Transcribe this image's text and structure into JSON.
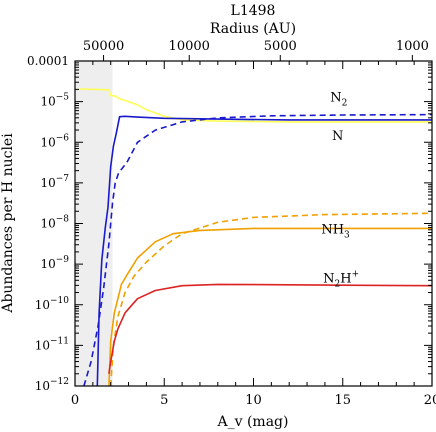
{
  "chart_data": {
    "type": "line",
    "title": "L1498",
    "xlabel": "A_v (mag)",
    "ylabel": "Abundances per H nuclei",
    "top_axis_label": "Radius (AU)",
    "xlim": [
      0,
      20
    ],
    "ylim_log10": [
      -12,
      -4
    ],
    "y_scale": "log",
    "grid": false,
    "x_ticks": [
      0,
      5,
      10,
      15,
      20
    ],
    "x_tick_labels": [
      "0",
      "5",
      "10",
      "15",
      "20"
    ],
    "y_tick_labels": [
      "10^-12",
      "10^-11",
      "10^-10",
      "10^-9",
      "10^-8",
      "10^-7",
      "10^-6",
      "10^-5",
      "0.0001"
    ],
    "top_ticks": [
      {
        "av": 1.6,
        "label": "50000"
      },
      {
        "av": 6.4,
        "label": "10000"
      },
      {
        "av": 11.5,
        "label": "5000"
      },
      {
        "av": 18.9,
        "label": "1000"
      }
    ],
    "shaded_region": {
      "x": [
        0,
        2.1
      ],
      "color": "#eeeeee"
    },
    "series": [
      {
        "name": "N2",
        "label_main": "N",
        "label_sub": "2",
        "label_sup": "",
        "label_pos": {
          "x": 14.3,
          "y": -5.0
        },
        "color": "#ffff55",
        "dash": false,
        "points": [
          [
            0.2,
            -4.69
          ],
          [
            1.2,
            -4.7
          ],
          [
            1.9,
            -4.71
          ],
          [
            2.0,
            -4.85
          ],
          [
            2.3,
            -4.87
          ],
          [
            2.5,
            -4.93
          ],
          [
            3.0,
            -5.0
          ],
          [
            3.5,
            -5.08
          ],
          [
            4.0,
            -5.2
          ],
          [
            5.0,
            -5.36
          ],
          [
            6.0,
            -5.45
          ],
          [
            8.0,
            -5.48
          ],
          [
            12.0,
            -5.5
          ],
          [
            20.0,
            -5.5
          ]
        ]
      },
      {
        "name": "N",
        "label_main": "N",
        "label_sub": "",
        "label_sup": "",
        "label_pos": {
          "x": 14.4,
          "y": -5.95
        },
        "color": "#1a1acc",
        "dash": false,
        "points": [
          [
            1.25,
            -12.0
          ],
          [
            1.35,
            -10.2
          ],
          [
            1.5,
            -8.9
          ],
          [
            1.7,
            -8.1
          ],
          [
            1.85,
            -7.6
          ],
          [
            2.0,
            -6.6
          ],
          [
            2.15,
            -6.1
          ],
          [
            2.3,
            -5.8
          ],
          [
            2.5,
            -5.37
          ],
          [
            2.8,
            -5.36
          ],
          [
            3.5,
            -5.38
          ],
          [
            5.0,
            -5.41
          ],
          [
            8.0,
            -5.43
          ],
          [
            12.0,
            -5.45
          ],
          [
            20.0,
            -5.45
          ]
        ]
      },
      {
        "name": "N dashed",
        "label_main": "",
        "label_sub": "",
        "label_sup": "",
        "color": "#1a1acc",
        "dash": true,
        "points": [
          [
            0.5,
            -12.0
          ],
          [
            0.9,
            -11.4
          ],
          [
            1.3,
            -10.5
          ],
          [
            1.6,
            -9.6
          ],
          [
            1.9,
            -8.5
          ],
          [
            2.1,
            -7.5
          ],
          [
            2.25,
            -7.0
          ],
          [
            2.45,
            -6.75
          ],
          [
            2.9,
            -6.5
          ],
          [
            3.5,
            -6.0
          ],
          [
            4.5,
            -5.7
          ],
          [
            6.0,
            -5.5
          ],
          [
            8.0,
            -5.4
          ],
          [
            11.0,
            -5.35
          ],
          [
            15.0,
            -5.33
          ],
          [
            20.0,
            -5.32
          ]
        ]
      },
      {
        "name": "NH3",
        "label_main": "NH",
        "label_sub": "3",
        "label_sup": "",
        "label_pos": {
          "x": 13.8,
          "y": -8.25
        },
        "color": "#f0a000",
        "dash": false,
        "points": [
          [
            1.9,
            -12.0
          ],
          [
            2.0,
            -10.9
          ],
          [
            2.2,
            -10.2
          ],
          [
            2.6,
            -9.5
          ],
          [
            3.0,
            -9.2
          ],
          [
            3.5,
            -8.85
          ],
          [
            4.5,
            -8.45
          ],
          [
            5.5,
            -8.25
          ],
          [
            7.0,
            -8.17
          ],
          [
            10.0,
            -8.12
          ],
          [
            15.0,
            -8.12
          ],
          [
            20.0,
            -8.12
          ]
        ]
      },
      {
        "name": "NH3 dashed",
        "label_main": "",
        "label_sub": "",
        "label_sup": "",
        "color": "#f0a000",
        "dash": true,
        "points": [
          [
            2.0,
            -12.0
          ],
          [
            2.15,
            -11.0
          ],
          [
            2.4,
            -10.3
          ],
          [
            2.8,
            -9.7
          ],
          [
            3.3,
            -9.3
          ],
          [
            4.0,
            -8.95
          ],
          [
            5.0,
            -8.55
          ],
          [
            6.0,
            -8.25
          ],
          [
            8.0,
            -7.97
          ],
          [
            10.0,
            -7.85
          ],
          [
            14.0,
            -7.78
          ],
          [
            20.0,
            -7.75
          ]
        ]
      },
      {
        "name": "N2H+",
        "label_main": "N",
        "label_sub": "2",
        "label_sup": "H",
        "label_pos": {
          "x": 13.9,
          "y": -9.45
        },
        "color": "#dd2222",
        "dash": false,
        "points": [
          [
            1.9,
            -11.7
          ],
          [
            2.0,
            -11.4
          ],
          [
            2.2,
            -10.9
          ],
          [
            2.4,
            -10.6
          ],
          [
            2.8,
            -10.2
          ],
          [
            3.5,
            -9.85
          ],
          [
            4.5,
            -9.65
          ],
          [
            6.0,
            -9.53
          ],
          [
            8.0,
            -9.5
          ],
          [
            12.0,
            -9.51
          ],
          [
            16.0,
            -9.52
          ],
          [
            20.0,
            -9.53
          ]
        ]
      }
    ]
  }
}
